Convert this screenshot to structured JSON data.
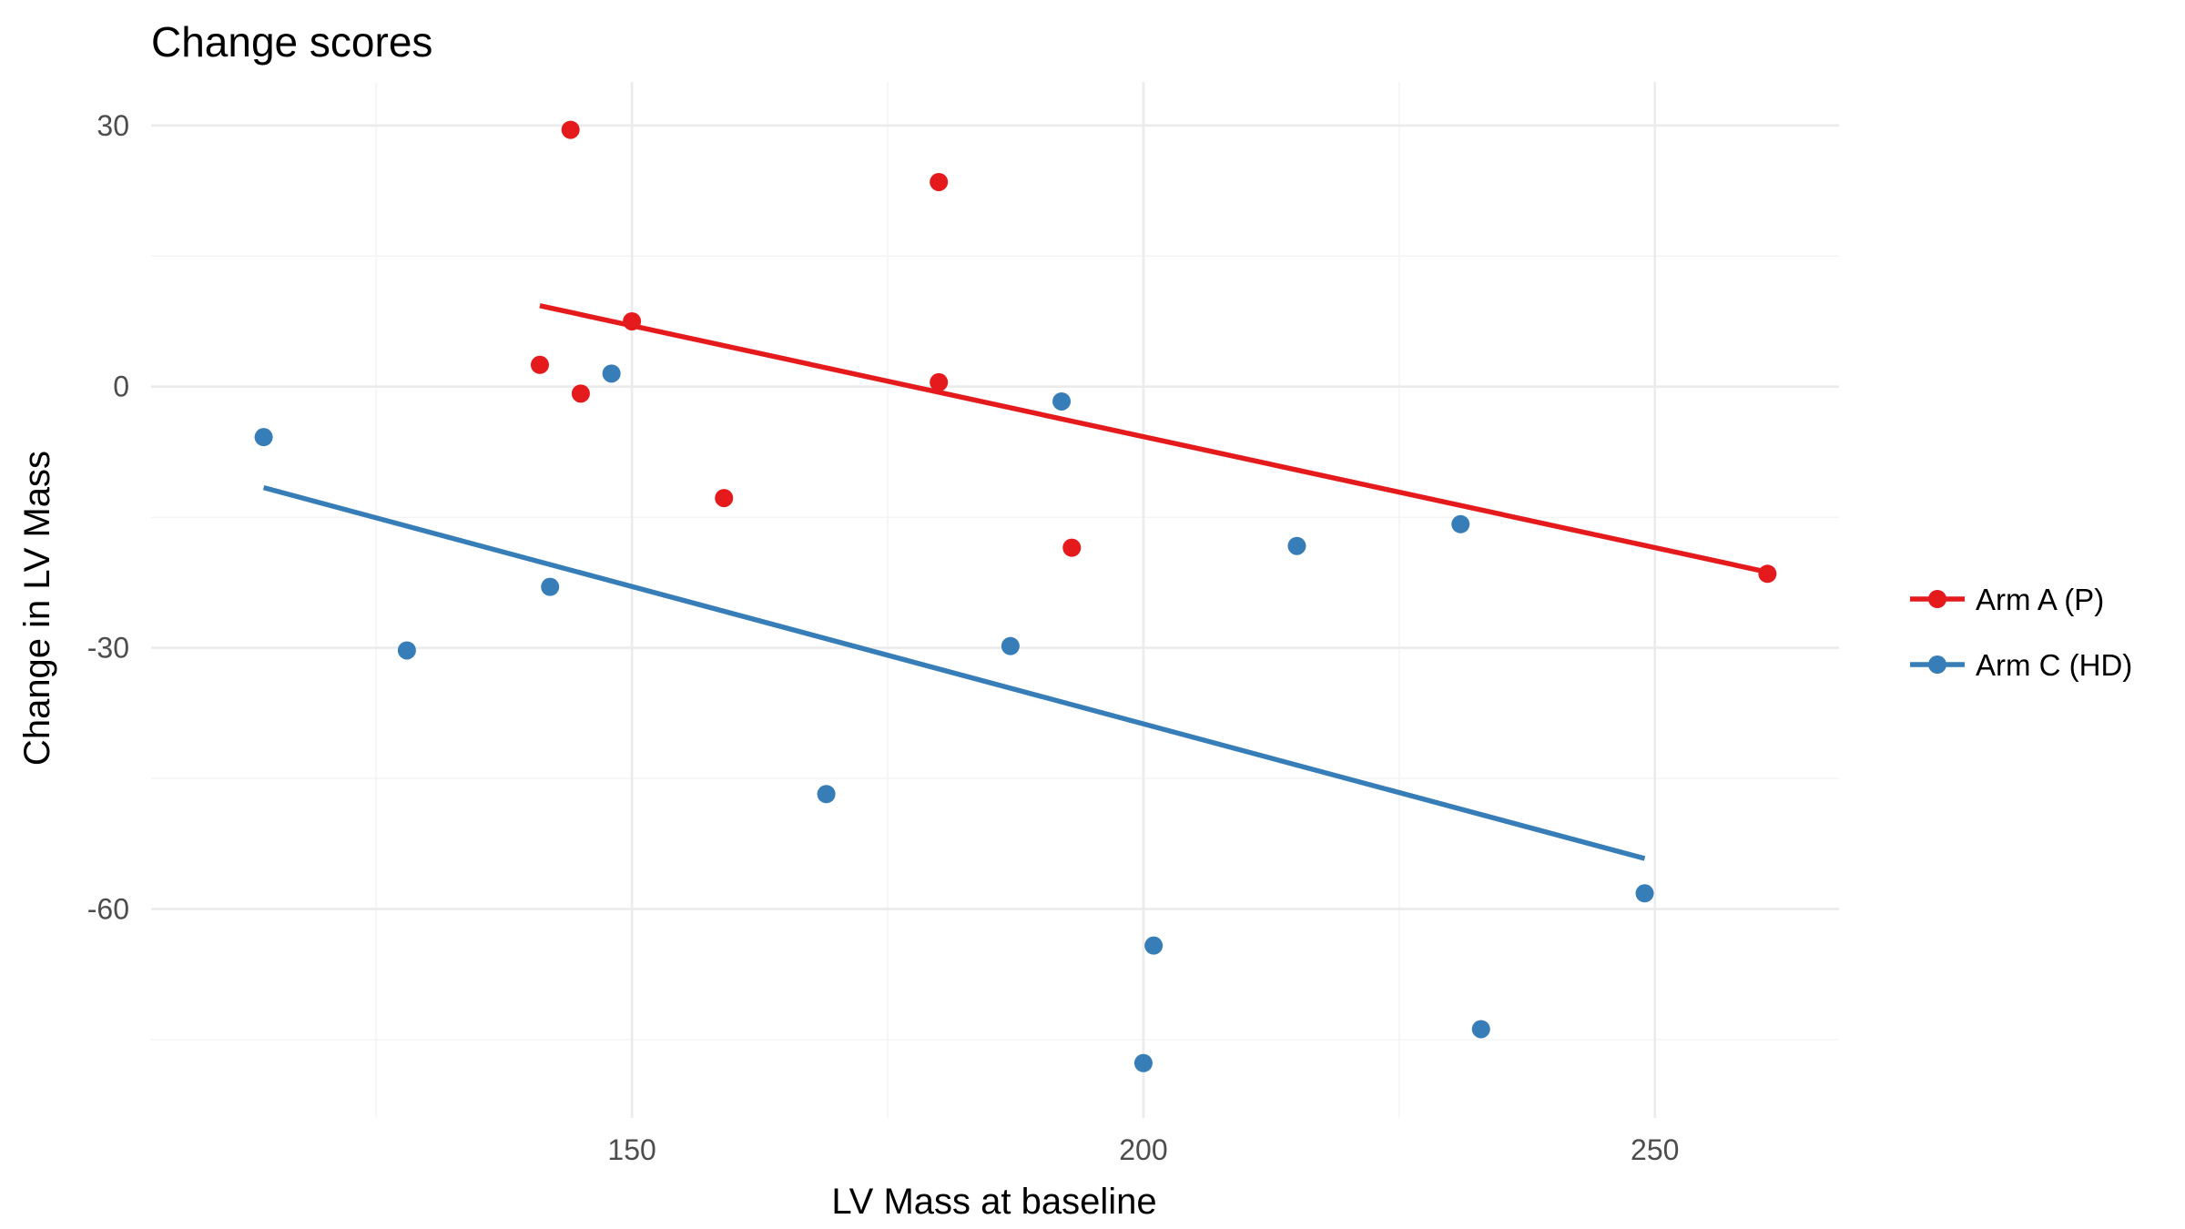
{
  "chart_data": {
    "type": "scatter",
    "title": "Change scores",
    "xlabel": "LV Mass at baseline",
    "ylabel": "Change in LV Mass",
    "xlim": [
      103,
      268
    ],
    "ylim": [
      -84,
      35
    ],
    "x_ticks": [
      150,
      200,
      250
    ],
    "x_tick_labels": [
      "150",
      "200",
      "250"
    ],
    "x_minor_ticks": [
      125,
      175,
      225
    ],
    "y_ticks": [
      30,
      0,
      -30,
      -60
    ],
    "y_tick_labels": [
      "30",
      "0",
      "-30",
      "-60"
    ],
    "y_minor_ticks": [
      15,
      -15,
      -45,
      -75
    ],
    "grid": true,
    "legend_position": "right",
    "series": [
      {
        "name": "Arm A (P)",
        "color": "#e41a1c",
        "points": [
          {
            "x": 144,
            "y": 29.5
          },
          {
            "x": 180,
            "y": 23.5
          },
          {
            "x": 150,
            "y": 7.5
          },
          {
            "x": 141,
            "y": 2.5
          },
          {
            "x": 180,
            "y": 0.5
          },
          {
            "x": 145,
            "y": -0.8
          },
          {
            "x": 159,
            "y": -12.8
          },
          {
            "x": 193,
            "y": -18.5
          },
          {
            "x": 261,
            "y": -21.5
          }
        ],
        "trend": [
          {
            "x": 141,
            "y": 9.3
          },
          {
            "x": 261,
            "y": -21.3
          }
        ]
      },
      {
        "name": "Arm C (HD)",
        "color": "#377eb8",
        "points": [
          {
            "x": 114,
            "y": -5.8
          },
          {
            "x": 148,
            "y": 1.5
          },
          {
            "x": 192,
            "y": -1.7
          },
          {
            "x": 142,
            "y": -23
          },
          {
            "x": 128,
            "y": -30.3
          },
          {
            "x": 187,
            "y": -29.8
          },
          {
            "x": 215,
            "y": -18.3
          },
          {
            "x": 231,
            "y": -15.8
          },
          {
            "x": 169,
            "y": -46.8
          },
          {
            "x": 249,
            "y": -58.2
          },
          {
            "x": 201,
            "y": -64.2
          },
          {
            "x": 233,
            "y": -73.8
          },
          {
            "x": 200,
            "y": -77.7
          }
        ],
        "trend": [
          {
            "x": 114,
            "y": -11.6
          },
          {
            "x": 249,
            "y": -54.2
          }
        ]
      }
    ]
  }
}
